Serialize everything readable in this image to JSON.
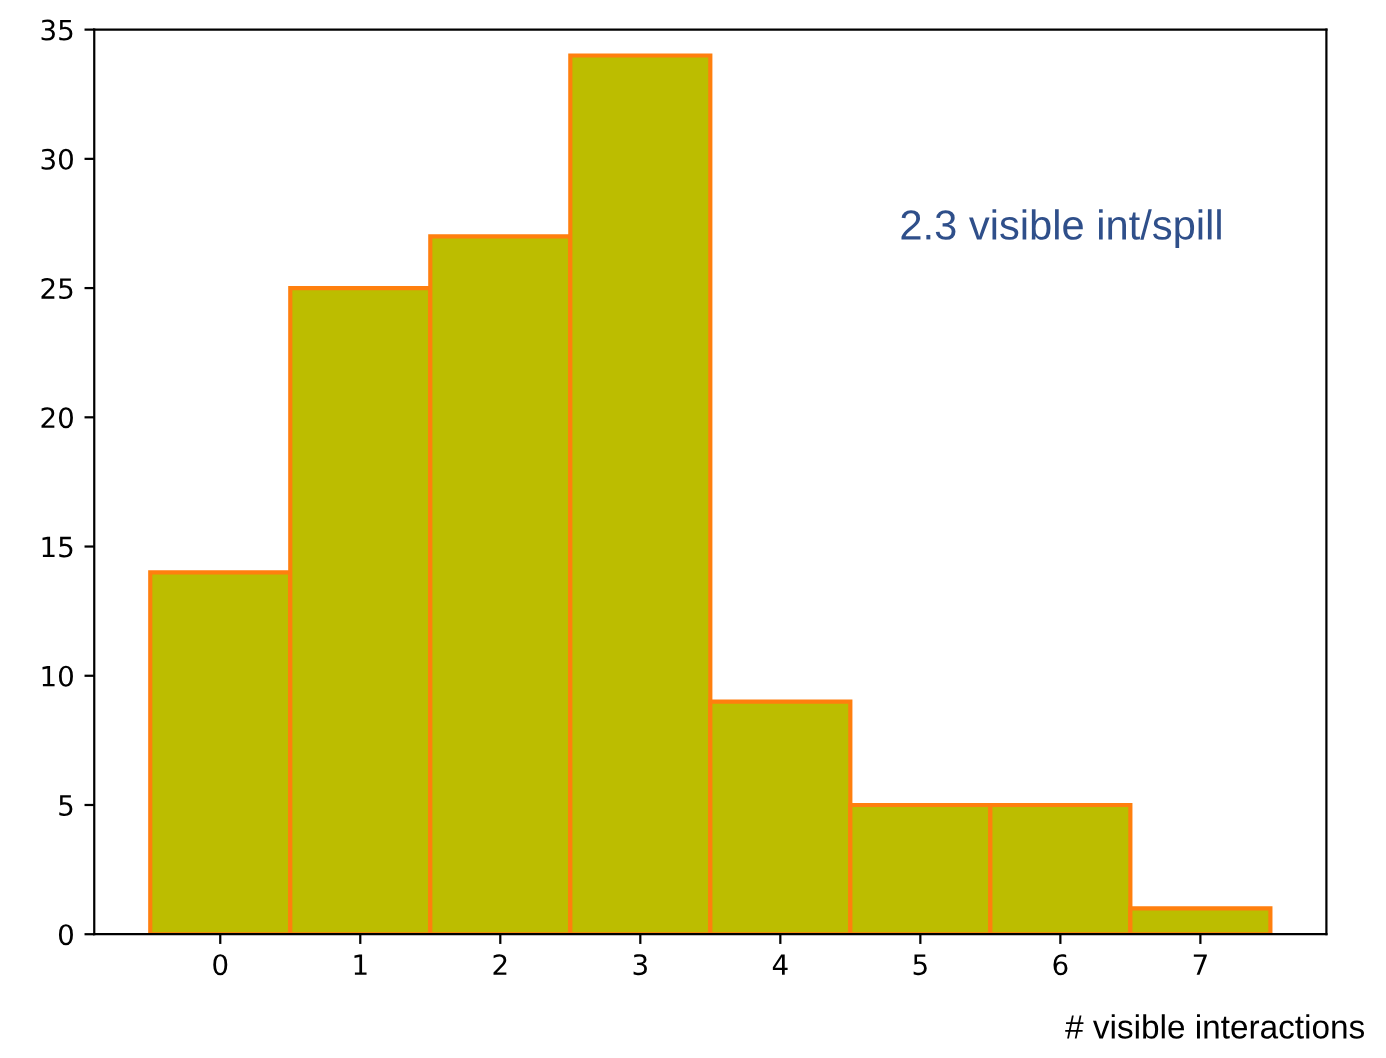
{
  "chart_data": {
    "type": "histogram",
    "bins": [
      -0.5,
      0.5,
      1.5,
      2.5,
      3.5,
      4.5,
      5.5,
      6.5,
      7.5
    ],
    "values": [
      14,
      25,
      27,
      34,
      9,
      5,
      5,
      1
    ],
    "color": "#bcbd00",
    "xlim": [
      -0.9,
      7.9
    ],
    "xticks": [
      0,
      1,
      2,
      3,
      4,
      5,
      6,
      7
    ],
    "ylim": [
      0,
      35
    ],
    "yticks": [
      0,
      5,
      10,
      15,
      20,
      25,
      30,
      35
    ],
    "xlabel": "# visible interactions",
    "annotations": [
      "2.3 visible int/spill"
    ],
    "grid": false
  }
}
